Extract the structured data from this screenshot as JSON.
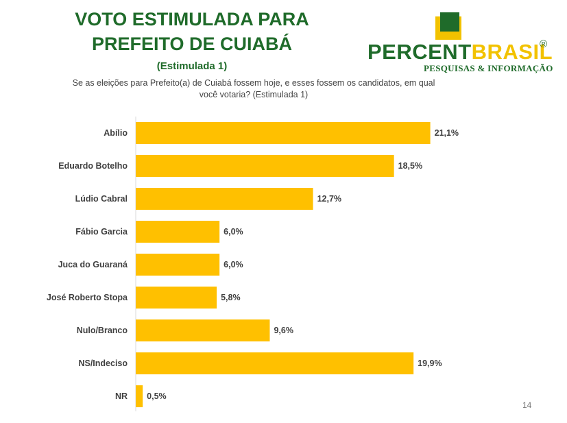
{
  "header": {
    "title_line1": "VOTO ESTIMULADA PARA",
    "title_line2": "PREFEITO DE CUIABÁ",
    "subtitle": "(Estimulada 1)",
    "question_line1": "Se as eleições para Prefeito(a) de Cuiabá fossem hoje, e esses fossem os candidatos, em qual",
    "question_line2": "você votaria? (Estimulada 1)"
  },
  "logo": {
    "brand_part1": "PERCENT",
    "brand_part2": "BRASIL",
    "registered": "®",
    "tagline": "PESQUISAS & INFORMAÇÃO"
  },
  "page_number": "14",
  "colors": {
    "bar": "#FFC000",
    "title": "#1F6B2A",
    "logo_yellow": "#F2C200"
  },
  "chart_data": {
    "type": "bar",
    "orientation": "horizontal",
    "categories": [
      "Abílio",
      "Eduardo Botelho",
      "Lúdio Cabral",
      "Fábio Garcia",
      "Juca do Guaraná",
      "José Roberto Stopa",
      "Nulo/Branco",
      "NS/Indeciso",
      "NR"
    ],
    "values": [
      21.1,
      18.5,
      12.7,
      6.0,
      6.0,
      5.8,
      9.6,
      19.9,
      0.5
    ],
    "labels": [
      "21,1%",
      "18,5%",
      "12,7%",
      "6,0%",
      "6,0%",
      "5,8%",
      "9,6%",
      "19,9%",
      "0,5%"
    ],
    "xlim": [
      0,
      25
    ],
    "grid": false,
    "legend": "none"
  }
}
